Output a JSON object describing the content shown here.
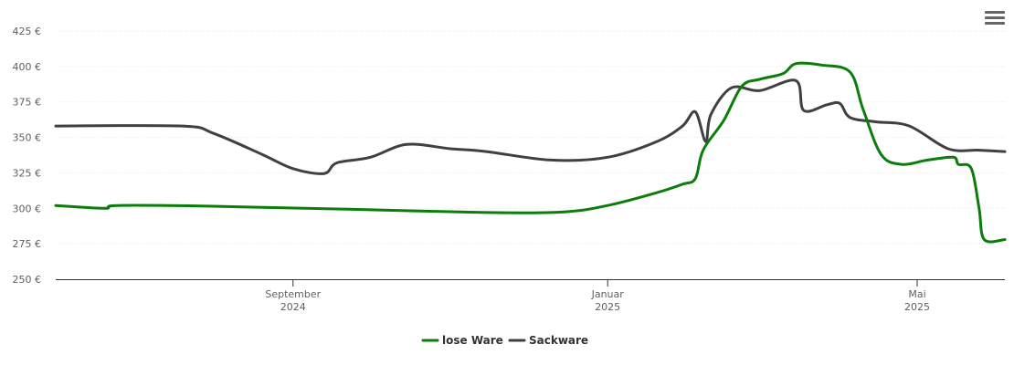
{
  "chart_data": {
    "type": "line",
    "y_unit": "€",
    "ylim": [
      250,
      425
    ],
    "yticks": [
      "425 €",
      "400 €",
      "375 €",
      "350 €",
      "325 €",
      "300 €",
      "275 €",
      "250 €"
    ],
    "ytick_values": [
      425,
      400,
      375,
      350,
      325,
      300,
      275,
      250
    ],
    "xlim": [
      "2024-06-01",
      "2025-06-04"
    ],
    "xticks": [
      {
        "date": "2024-09-01",
        "line1": "September",
        "line2": "2024"
      },
      {
        "date": "2025-01-01",
        "line1": "Januar",
        "line2": "2025"
      },
      {
        "date": "2025-05-01",
        "line1": "Mai",
        "line2": "2025"
      }
    ],
    "grid": true,
    "legend_position": "bottom-center",
    "series": [
      {
        "name": "lose Ware",
        "color": "#0a7d0a",
        "points": [
          [
            "2024-06-01",
            302
          ],
          [
            "2024-06-20",
            300
          ],
          [
            "2024-06-25",
            302
          ],
          [
            "2024-08-01",
            301.5
          ],
          [
            "2024-09-20",
            299.5
          ],
          [
            "2024-11-15",
            297
          ],
          [
            "2024-12-15",
            297.5
          ],
          [
            "2025-01-01",
            302
          ],
          [
            "2025-01-20",
            311
          ],
          [
            "2025-01-30",
            317
          ],
          [
            "2025-02-04",
            321
          ],
          [
            "2025-02-07",
            341
          ],
          [
            "2025-02-15",
            362
          ],
          [
            "2025-02-22",
            386
          ],
          [
            "2025-03-01",
            391
          ],
          [
            "2025-03-10",
            395
          ],
          [
            "2025-03-15",
            402
          ],
          [
            "2025-03-25",
            401
          ],
          [
            "2025-04-05",
            396
          ],
          [
            "2025-04-10",
            370
          ],
          [
            "2025-04-17",
            338
          ],
          [
            "2025-04-25",
            331
          ],
          [
            "2025-05-05",
            334
          ],
          [
            "2025-05-15",
            336
          ],
          [
            "2025-05-17",
            331
          ],
          [
            "2025-05-22",
            328
          ],
          [
            "2025-05-25",
            300
          ],
          [
            "2025-05-27",
            278
          ],
          [
            "2025-06-04",
            278
          ]
        ]
      },
      {
        "name": "Sackware",
        "color": "#404040",
        "points": [
          [
            "2024-06-01",
            358
          ],
          [
            "2024-07-20",
            358
          ],
          [
            "2024-08-01",
            353
          ],
          [
            "2024-08-20",
            338
          ],
          [
            "2024-09-01",
            328
          ],
          [
            "2024-09-13",
            324.5
          ],
          [
            "2024-09-18",
            332
          ],
          [
            "2024-10-01",
            336
          ],
          [
            "2024-10-15",
            345
          ],
          [
            "2024-11-01",
            342
          ],
          [
            "2024-11-15",
            340
          ],
          [
            "2024-12-10",
            334
          ],
          [
            "2025-01-01",
            336
          ],
          [
            "2025-01-20",
            347
          ],
          [
            "2025-01-30",
            358
          ],
          [
            "2025-02-04",
            368
          ],
          [
            "2025-02-08",
            347
          ],
          [
            "2025-02-10",
            366
          ],
          [
            "2025-02-18",
            385
          ],
          [
            "2025-03-01",
            383
          ],
          [
            "2025-03-15",
            390
          ],
          [
            "2025-03-18",
            369
          ],
          [
            "2025-03-27",
            373
          ],
          [
            "2025-04-01",
            374
          ],
          [
            "2025-04-05",
            364
          ],
          [
            "2025-04-15",
            361
          ],
          [
            "2025-04-28",
            358
          ],
          [
            "2025-05-13",
            342
          ],
          [
            "2025-05-25",
            341
          ],
          [
            "2025-06-04",
            340
          ]
        ]
      }
    ]
  },
  "legend": {
    "items": [
      "lose Ware",
      "Sackware"
    ]
  },
  "menu": {
    "icon": "hamburger-menu-icon"
  }
}
